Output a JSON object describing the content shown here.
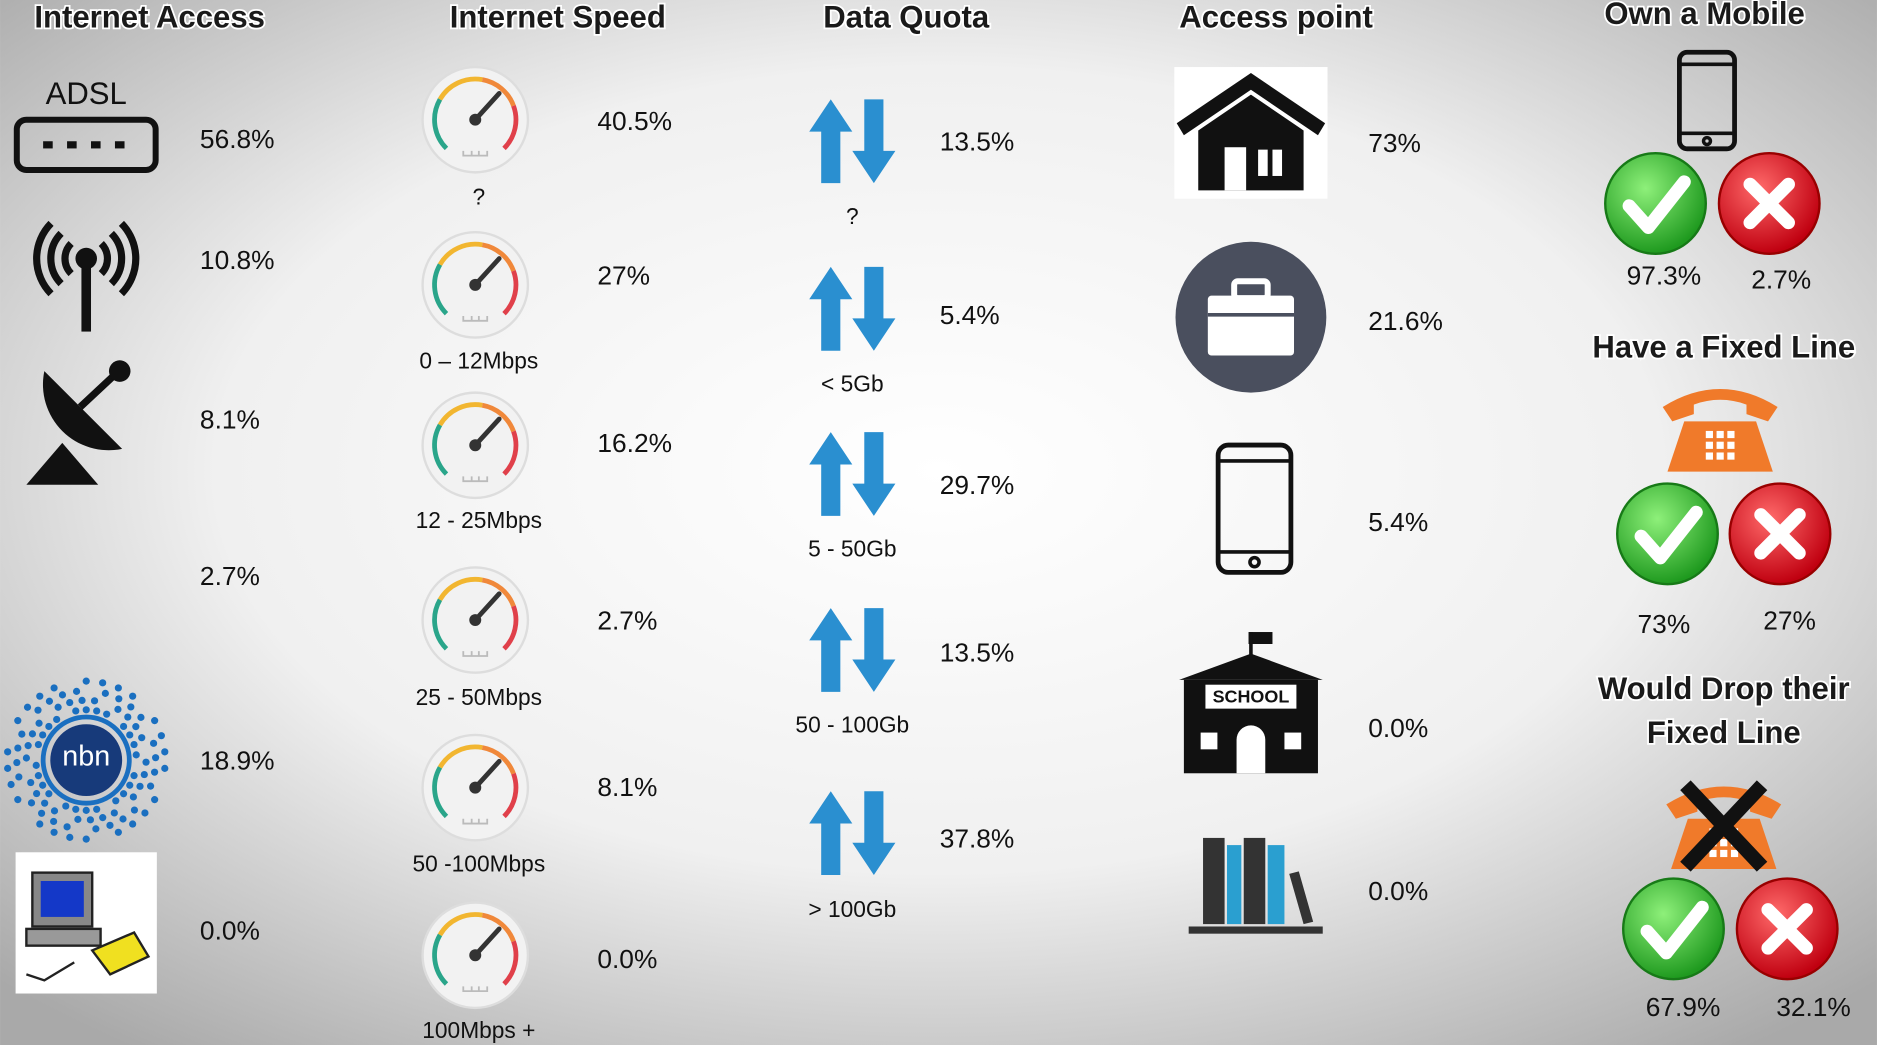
{
  "internet_access": {
    "title": "Internet Access",
    "items": [
      {
        "icon_label": "ADSL",
        "value": "56.8%"
      },
      {
        "value": "10.8%"
      },
      {
        "value": "8.1%"
      },
      {
        "value": "2.7%"
      },
      {
        "icon_label": "nbn",
        "value": "18.9%"
      },
      {
        "value": "0.0%"
      }
    ]
  },
  "internet_speed": {
    "title": "Internet Speed",
    "items": [
      {
        "label": "?",
        "value": "40.5%"
      },
      {
        "label": "0 – 12Mbps",
        "value": "27%"
      },
      {
        "label": "12 - 25Mbps",
        "value": "16.2%"
      },
      {
        "label": "25 - 50Mbps",
        "value": "2.7%"
      },
      {
        "label": "50 -100Mbps",
        "value": "8.1%"
      },
      {
        "label": "100Mbps +",
        "value": "0.0%"
      }
    ]
  },
  "data_quota": {
    "title": "Data Quota",
    "items": [
      {
        "label": "?",
        "value": "13.5%"
      },
      {
        "label": "< 5Gb",
        "value": "5.4%"
      },
      {
        "label": "5 - 50Gb",
        "value": "29.7%"
      },
      {
        "label": "50 - 100Gb",
        "value": "13.5%"
      },
      {
        "label": "> 100Gb",
        "value": "37.8%"
      }
    ]
  },
  "access_point": {
    "title": "Access point",
    "items": [
      {
        "value": "73%"
      },
      {
        "value": "21.6%"
      },
      {
        "value": "5.4%"
      },
      {
        "icon_label": "SCHOOL",
        "value": "0.0%"
      },
      {
        "value": "0.0%"
      }
    ]
  },
  "questions": [
    {
      "title_lines": [
        "Own a Mobile"
      ],
      "yes": "97.3%",
      "no": "2.7%"
    },
    {
      "title_lines": [
        "Have a Fixed Line"
      ],
      "yes": "73%",
      "no": "27%"
    },
    {
      "title_lines": [
        "Would Drop their",
        "Fixed Line"
      ],
      "yes": "67.9%",
      "no": "32.1%"
    }
  ]
}
